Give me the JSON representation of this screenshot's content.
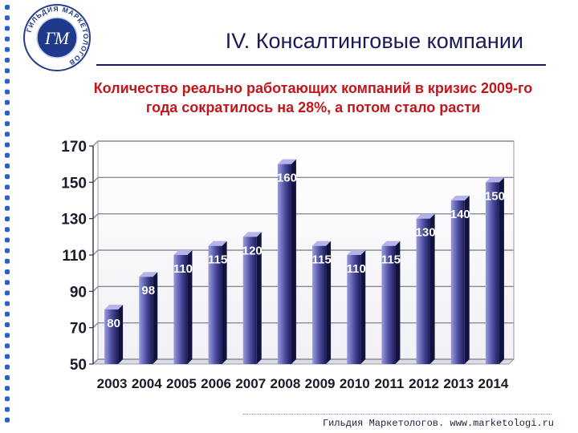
{
  "header": {
    "title": "IV. Консалтинговые компании",
    "logo_text": "ГИЛЬДИЯ МАРКЕТОЛОГОВ",
    "logo_monogram": "ГМ"
  },
  "subtitle_lines": [
    "Количество реально работающих компаний в кризис 2009-го",
    "года сократилось на 28%, а потом стало расти"
  ],
  "footer": {
    "text": "Гильдия Маркетологов. www.marketologi.ru"
  },
  "colors": {
    "title": "#1a1a5a",
    "subtitle": "#c0161c",
    "bar_light": "#9a9ae0",
    "bar_dark": "#1c1c5a",
    "dots": "#2a5fc8"
  },
  "chart_data": {
    "type": "bar",
    "categories": [
      "2003",
      "2004",
      "2005",
      "2006",
      "2007",
      "2008",
      "2009",
      "2010",
      "2011",
      "2012",
      "2013",
      "2014"
    ],
    "values": [
      80,
      98,
      110,
      115,
      120,
      160,
      115,
      110,
      115,
      130,
      140,
      150
    ],
    "data_labels": [
      "80",
      "98",
      "110",
      "115",
      "120",
      "160",
      "115",
      "110",
      "115",
      "130",
      "140",
      "150"
    ],
    "y_ticks": [
      50,
      70,
      90,
      110,
      130,
      150,
      170
    ],
    "ylim": [
      50,
      170
    ],
    "grid": true,
    "title": "",
    "xlabel": "",
    "ylabel": ""
  }
}
